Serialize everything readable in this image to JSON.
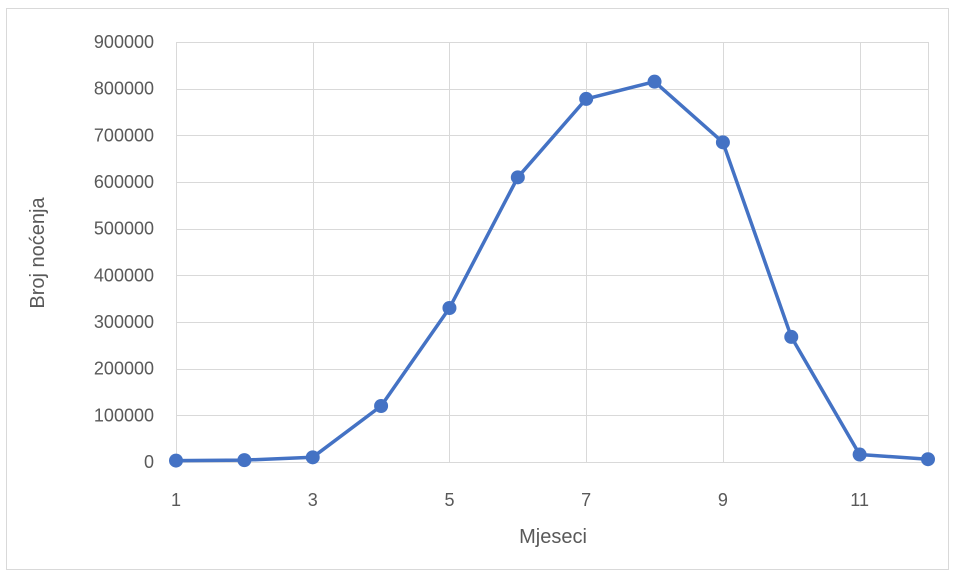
{
  "chart_data": {
    "type": "scatter",
    "mode": "lines+markers",
    "xlabel": "Mjeseci",
    "ylabel": "Broj noćenja",
    "xlim": [
      1,
      12
    ],
    "ylim": [
      0,
      900000
    ],
    "x_ticks": [
      1,
      3,
      5,
      7,
      9,
      11
    ],
    "y_ticks": [
      0,
      100000,
      200000,
      300000,
      400000,
      500000,
      600000,
      700000,
      800000,
      900000
    ],
    "grid": true,
    "legend": "none",
    "series": [
      {
        "color": "#4472c4",
        "x": [
          1,
          2,
          3,
          4,
          5,
          6,
          7,
          8,
          9,
          10,
          11,
          12
        ],
        "y": [
          3000,
          4000,
          10000,
          120000,
          330000,
          610000,
          778000,
          815000,
          685000,
          268000,
          16000,
          6000
        ]
      }
    ]
  }
}
